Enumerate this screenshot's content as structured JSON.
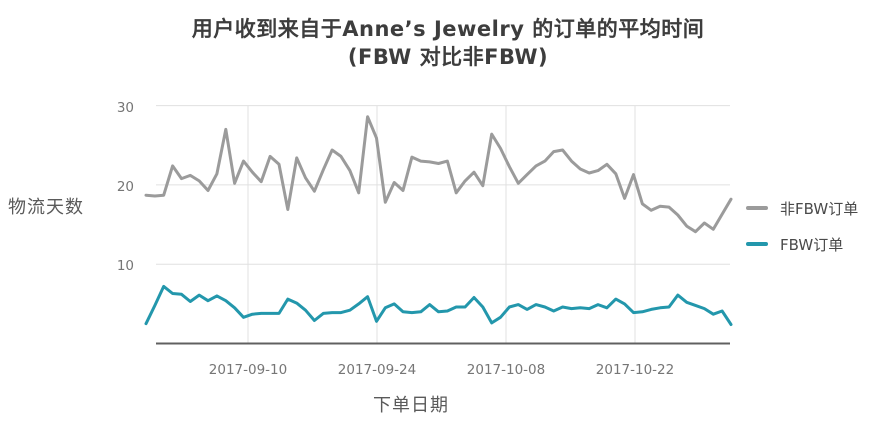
{
  "page": {
    "background": "#ffffff"
  },
  "chart_data": {
    "type": "line",
    "title": "用户收到来自于Anne’s Jewelry 的订单的平均时间",
    "subtitle": "(FBW 对比非FBW)",
    "xlabel": "下单日期",
    "ylabel": "物流天数",
    "x_tick_labels": [
      "2017-09-10",
      "2017-09-24",
      "2017-10-08",
      "2017-10-22"
    ],
    "y_tick_labels": [
      "30",
      "20",
      "10"
    ],
    "ylim": [
      0,
      30.5
    ],
    "grid": true,
    "legend_position": "right",
    "colors": {
      "grid_line": "#e0e0e0",
      "axis_line": "#606060",
      "tick_text": "#767676",
      "title_text": "#3d3d3d",
      "axis_title_text": "#5a5a5a"
    },
    "series": [
      {
        "name": "非FBW订单",
        "color": "#9b9b9b",
        "values": [
          18.7,
          18.6,
          18.7,
          22.4,
          20.8,
          21.2,
          20.5,
          19.3,
          21.4,
          27.0,
          20.2,
          23.0,
          21.6,
          20.4,
          23.6,
          22.6,
          16.9,
          23.4,
          20.9,
          19.2,
          21.9,
          24.4,
          23.6,
          21.8,
          19.0,
          28.6,
          25.9,
          17.8,
          20.3,
          19.3,
          23.5,
          23.0,
          22.9,
          22.7,
          23.0,
          19.0,
          20.5,
          21.6,
          19.9,
          26.4,
          24.6,
          22.3,
          20.2,
          21.3,
          22.4,
          23.0,
          24.2,
          24.4,
          23.0,
          22.0,
          21.5,
          21.8,
          22.6,
          21.4,
          18.3,
          21.3,
          17.6,
          16.8,
          17.3,
          17.2,
          16.2,
          14.8,
          14.1,
          15.2,
          14.4,
          16.3,
          18.2
        ]
      },
      {
        "name": "FBW订单",
        "color": "#2397ac",
        "values": [
          2.5,
          4.8,
          7.2,
          6.3,
          6.2,
          5.3,
          6.1,
          5.4,
          6.0,
          5.4,
          4.5,
          3.3,
          3.7,
          3.8,
          3.8,
          3.8,
          5.6,
          5.1,
          4.2,
          2.9,
          3.8,
          3.9,
          3.9,
          4.2,
          5.0,
          5.9,
          2.8,
          4.5,
          5.0,
          4.0,
          3.9,
          4.0,
          4.9,
          4.0,
          4.1,
          4.6,
          4.6,
          5.8,
          4.6,
          2.6,
          3.3,
          4.6,
          4.9,
          4.3,
          4.9,
          4.6,
          4.1,
          4.6,
          4.4,
          4.5,
          4.4,
          4.9,
          4.5,
          5.6,
          5.0,
          3.9,
          4.0,
          4.3,
          4.5,
          4.6,
          6.1,
          5.2,
          4.8,
          4.4,
          3.7,
          4.1,
          2.4
        ]
      }
    ]
  }
}
